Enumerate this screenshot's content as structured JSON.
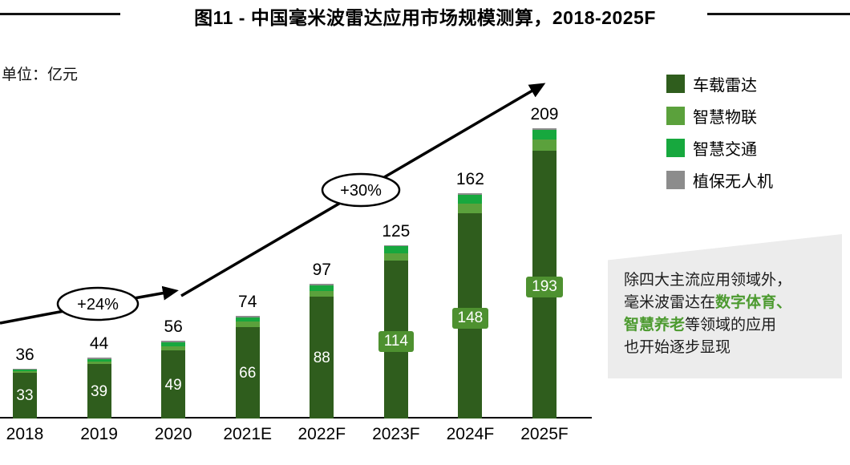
{
  "title": "图11 - 中国毫米波雷达应用市场规模测算，2018-2025F",
  "unit_label": "单位：亿元",
  "annotations": {
    "growth_1": "+24%",
    "growth_2": "+30%"
  },
  "colors": {
    "vehicle_radar": "#2f5d1d",
    "smart_iot": "#5ba13c",
    "smart_traffic": "#17a83e",
    "uav": "#8c8c8c",
    "bar_label_badge": "#4e9130",
    "callout_bg": "#ececec",
    "callout_highlight": "#4c9a2f",
    "axis": "#000000"
  },
  "callout": {
    "line1": "除四大主流应用领域外，",
    "line2_pre": "毫米波雷达在",
    "line2_highlight": "数字体育、",
    "line3_highlight": "智慧养老",
    "line3_post": "等领域的应用",
    "line4": "也开始逐步显现"
  },
  "chart_data": {
    "type": "bar",
    "stacked": true,
    "title": "图11 - 中国毫米波雷达应用市场规模测算，2018-2025F",
    "ylabel": "亿元",
    "categories": [
      "2018",
      "2019",
      "2020",
      "2021E",
      "2022F",
      "2023F",
      "2024F",
      "2025F"
    ],
    "totals": [
      36,
      44,
      56,
      74,
      97,
      125,
      162,
      209
    ],
    "series": [
      {
        "key": "vehicle-radar",
        "name": "车载雷达",
        "color": "#2f5d1d",
        "values": [
          33,
          39,
          49,
          66,
          88,
          114,
          148,
          193
        ]
      },
      {
        "key": "smart-iot",
        "name": "智慧物联",
        "color": "#5ba13c",
        "values": [
          1,
          2,
          3,
          4,
          4,
          5,
          7,
          8
        ]
      },
      {
        "key": "smart-traffic",
        "name": "智慧交通",
        "color": "#17a83e",
        "values": [
          1,
          2,
          3,
          3,
          4,
          5,
          6,
          7
        ]
      },
      {
        "key": "plant-protection-uav",
        "name": "植保无人机",
        "color": "#8c8c8c",
        "values": [
          1,
          1,
          1,
          1,
          1,
          1,
          1,
          1
        ]
      }
    ],
    "bar_value_labels": [
      33,
      39,
      49,
      66,
      88,
      114,
      148,
      193
    ],
    "badge_label_start_index": 5,
    "growth_annotations": [
      "+24%",
      "+30%"
    ],
    "ylim": [
      0,
      209
    ],
    "legend_position": "top-right",
    "grid": false
  }
}
